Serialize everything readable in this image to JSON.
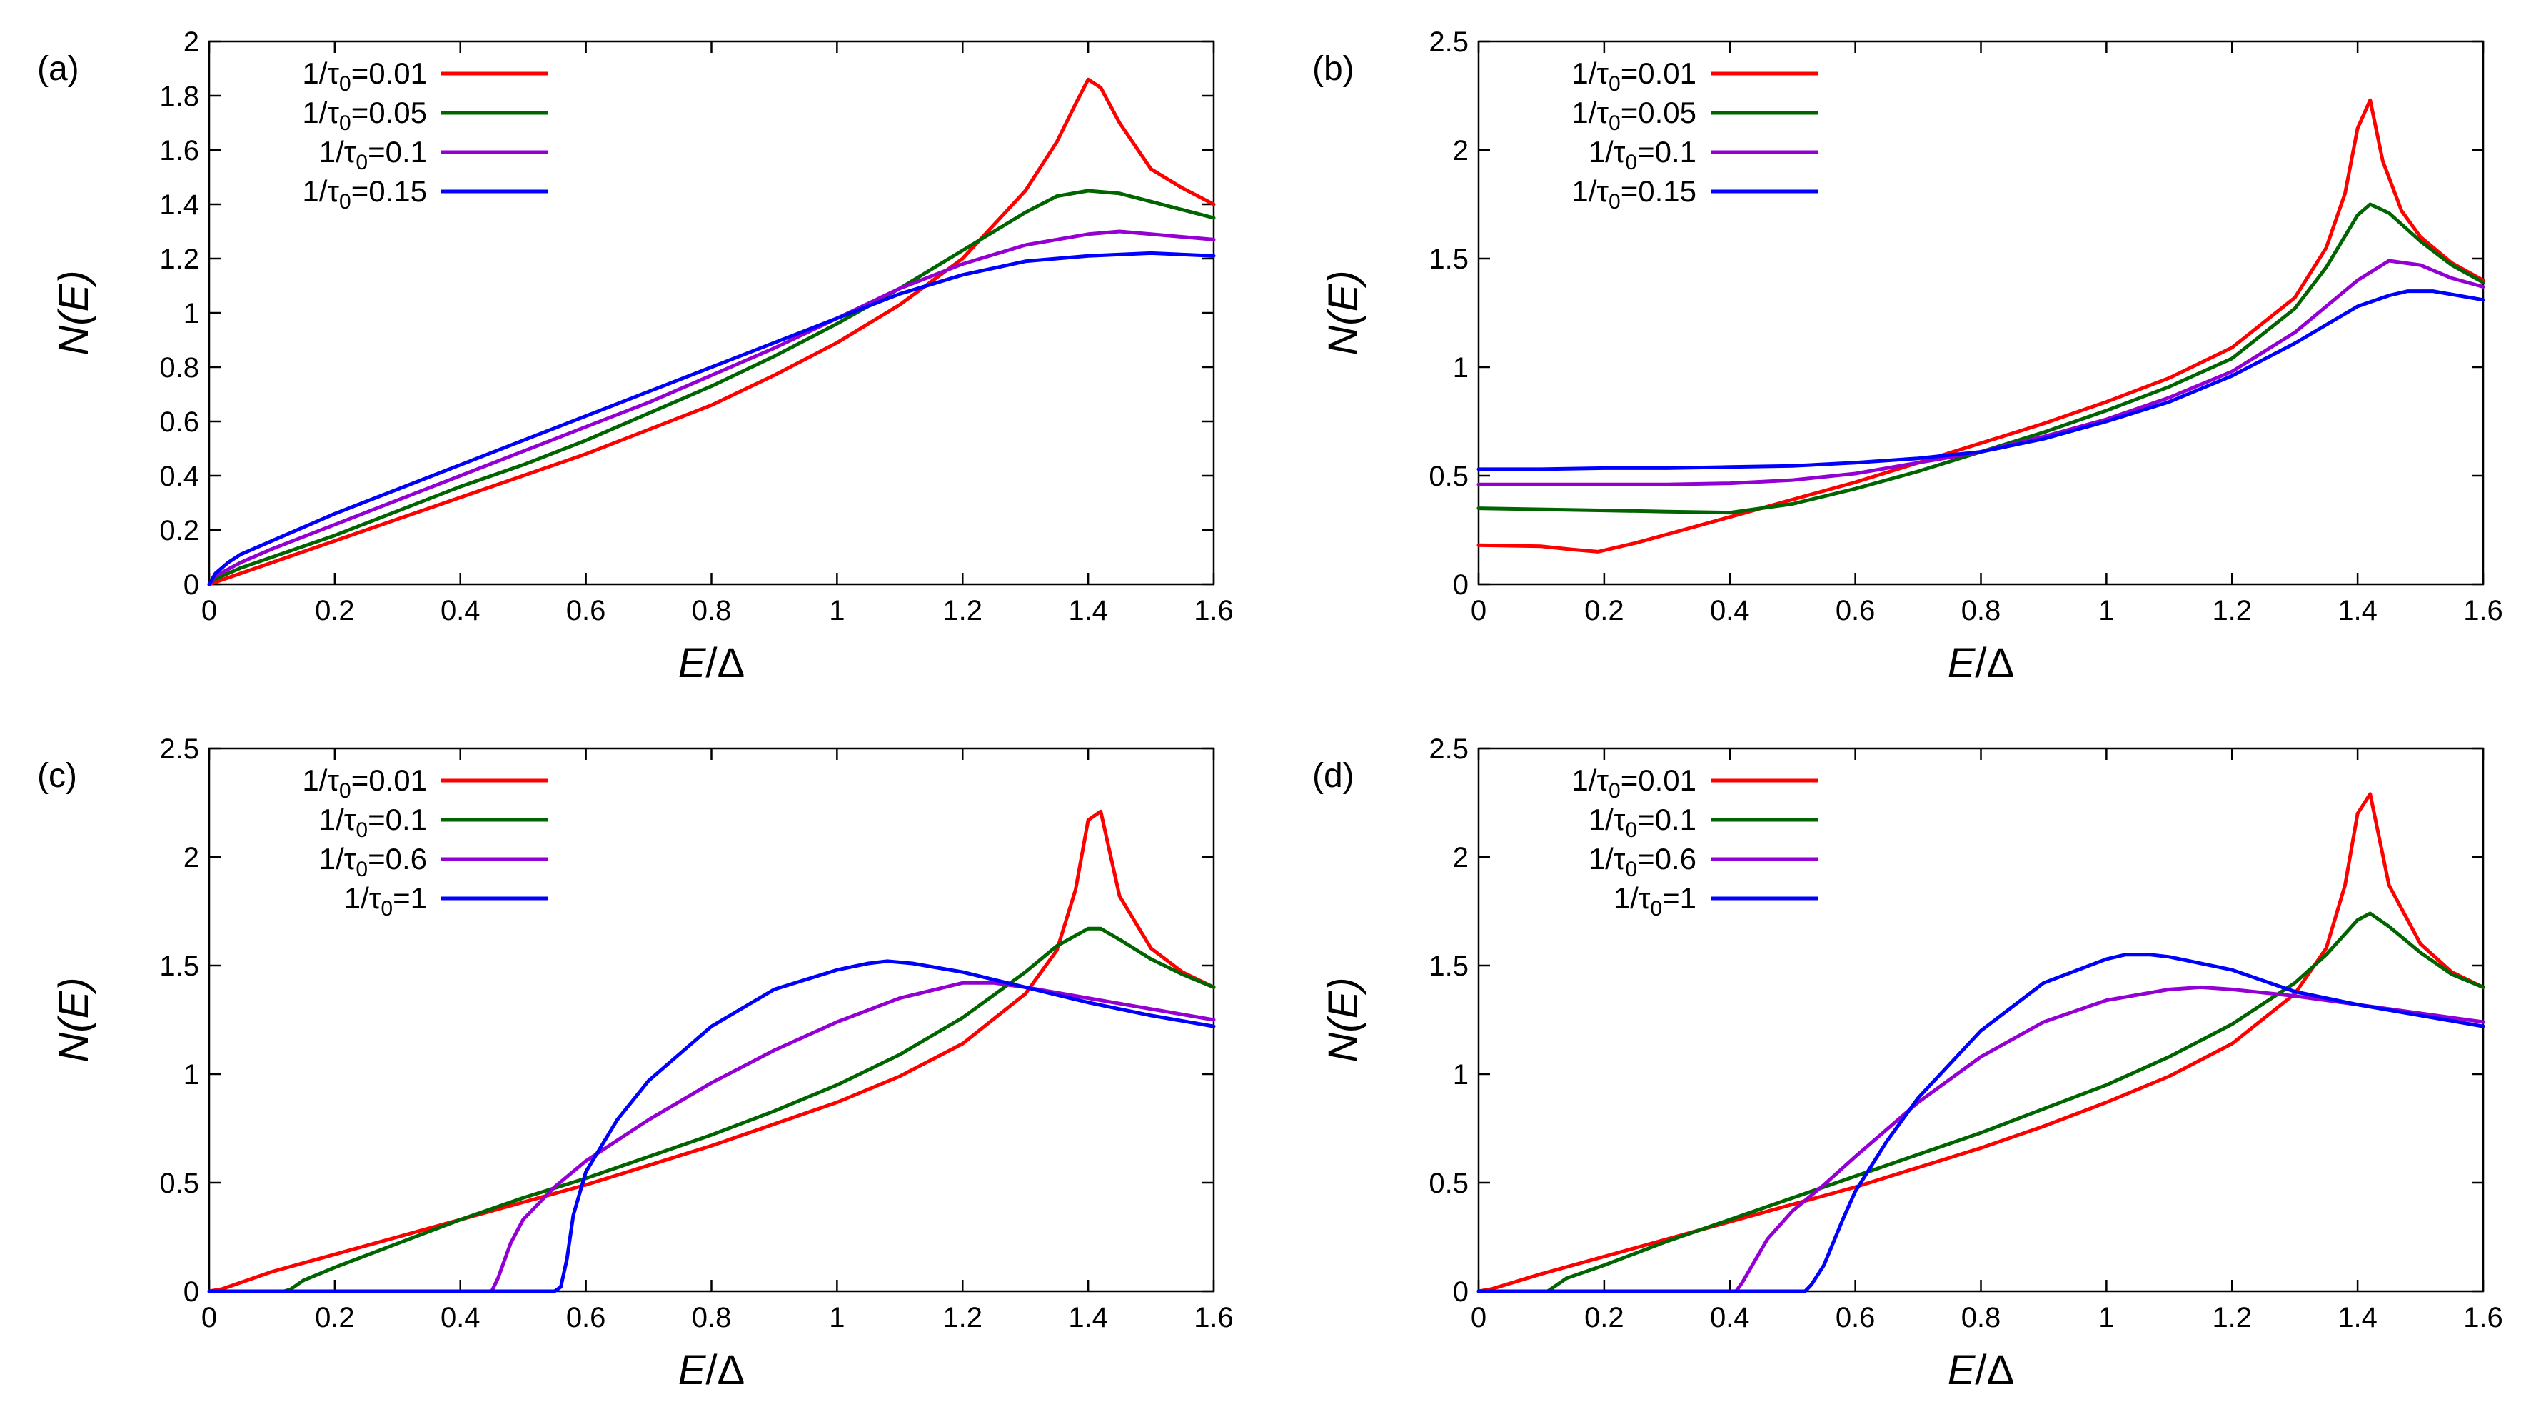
{
  "figure": {
    "xlabel_var": "E",
    "xlabel_rest": "/Δ",
    "ylabel": "N(E)",
    "colors": {
      "red": "#ff0000",
      "green": "#006400",
      "purple": "#9400d3",
      "blue": "#0000ff"
    }
  },
  "chart_data": [
    {
      "type": "line",
      "panel_label": "(a)",
      "xlim": [
        0,
        1.6
      ],
      "ylim": [
        0,
        2
      ],
      "xticks": [
        "0",
        "0.2",
        "0.4",
        "0.6",
        "0.8",
        "1",
        "1.2",
        "1.4",
        "1.6"
      ],
      "xtick_values": [
        0,
        0.2,
        0.4,
        0.6,
        0.8,
        1,
        1.2,
        1.4,
        1.6
      ],
      "yticks": [
        "0",
        "0.2",
        "0.4",
        "0.6",
        "0.8",
        "1",
        "1.2",
        "1.4",
        "1.6",
        "1.8",
        "2"
      ],
      "ytick_values": [
        0,
        0.2,
        0.4,
        0.6,
        0.8,
        1,
        1.2,
        1.4,
        1.6,
        1.8,
        2
      ],
      "xlabel": "E/Δ",
      "ylabel": "N(E)",
      "legend_position": "top-left",
      "series": [
        {
          "name": "1/τ0=0.01",
          "label_main": "1/τ",
          "label_sub": "0",
          "label_val": "=0.01",
          "color": "#ff0000",
          "x": [
            0,
            0.1,
            0.2,
            0.3,
            0.4,
            0.5,
            0.6,
            0.7,
            0.8,
            0.9,
            1.0,
            1.1,
            1.2,
            1.3,
            1.35,
            1.38,
            1.4,
            1.42,
            1.45,
            1.5,
            1.55,
            1.6
          ],
          "y": [
            0,
            0.08,
            0.16,
            0.24,
            0.32,
            0.4,
            0.48,
            0.57,
            0.66,
            0.77,
            0.89,
            1.03,
            1.2,
            1.45,
            1.63,
            1.77,
            1.86,
            1.83,
            1.7,
            1.53,
            1.46,
            1.4
          ]
        },
        {
          "name": "1/τ0=0.05",
          "label_main": "1/τ",
          "label_sub": "0",
          "label_val": "=0.05",
          "color": "#006400",
          "x": [
            0,
            0.01,
            0.05,
            0.1,
            0.2,
            0.3,
            0.4,
            0.5,
            0.6,
            0.7,
            0.8,
            0.9,
            1.0,
            1.1,
            1.2,
            1.3,
            1.35,
            1.4,
            1.45,
            1.5,
            1.55,
            1.6
          ],
          "y": [
            0,
            0.02,
            0.06,
            0.1,
            0.18,
            0.27,
            0.36,
            0.44,
            0.53,
            0.63,
            0.73,
            0.84,
            0.96,
            1.09,
            1.23,
            1.37,
            1.43,
            1.45,
            1.44,
            1.41,
            1.38,
            1.35
          ]
        },
        {
          "name": "1/τ0=0.1",
          "label_main": "1/τ",
          "label_sub": "0",
          "label_val": "=0.1",
          "color": "#9400d3",
          "x": [
            0,
            0.01,
            0.05,
            0.1,
            0.2,
            0.3,
            0.4,
            0.5,
            0.6,
            0.7,
            0.8,
            0.9,
            1.0,
            1.1,
            1.2,
            1.3,
            1.4,
            1.45,
            1.5,
            1.6
          ],
          "y": [
            0,
            0.03,
            0.08,
            0.13,
            0.22,
            0.31,
            0.4,
            0.49,
            0.58,
            0.67,
            0.77,
            0.87,
            0.98,
            1.09,
            1.18,
            1.25,
            1.29,
            1.3,
            1.29,
            1.27
          ]
        },
        {
          "name": "1/τ0=0.15",
          "label_main": "1/τ",
          "label_sub": "0",
          "label_val": "=0.15",
          "color": "#0000ff",
          "x": [
            0,
            0.01,
            0.03,
            0.05,
            0.1,
            0.2,
            0.3,
            0.4,
            0.5,
            0.6,
            0.7,
            0.8,
            0.9,
            1.0,
            1.1,
            1.2,
            1.3,
            1.4,
            1.5,
            1.6
          ],
          "y": [
            0,
            0.04,
            0.08,
            0.11,
            0.16,
            0.26,
            0.35,
            0.44,
            0.53,
            0.62,
            0.71,
            0.8,
            0.89,
            0.98,
            1.07,
            1.14,
            1.19,
            1.21,
            1.22,
            1.21
          ]
        }
      ]
    },
    {
      "type": "line",
      "panel_label": "(b)",
      "xlim": [
        0,
        1.6
      ],
      "ylim": [
        0,
        2.5
      ],
      "xticks": [
        "0",
        "0.2",
        "0.4",
        "0.6",
        "0.8",
        "1",
        "1.2",
        "1.4",
        "1.6"
      ],
      "xtick_values": [
        0,
        0.2,
        0.4,
        0.6,
        0.8,
        1,
        1.2,
        1.4,
        1.6
      ],
      "yticks": [
        "0",
        "0.5",
        "1",
        "1.5",
        "2",
        "2.5"
      ],
      "ytick_values": [
        0,
        0.5,
        1,
        1.5,
        2,
        2.5
      ],
      "xlabel": "E/Δ",
      "ylabel": "N(E)",
      "legend_position": "top-left",
      "series": [
        {
          "name": "1/τ0=0.01",
          "label_main": "1/τ",
          "label_sub": "0",
          "label_val": "=0.01",
          "color": "#ff0000",
          "x": [
            0,
            0.1,
            0.15,
            0.19,
            0.25,
            0.3,
            0.4,
            0.5,
            0.6,
            0.7,
            0.8,
            0.9,
            1.0,
            1.1,
            1.2,
            1.3,
            1.35,
            1.38,
            1.4,
            1.42,
            1.44,
            1.47,
            1.5,
            1.55,
            1.6
          ],
          "y": [
            0.18,
            0.175,
            0.16,
            0.15,
            0.19,
            0.23,
            0.31,
            0.39,
            0.47,
            0.56,
            0.65,
            0.74,
            0.84,
            0.95,
            1.09,
            1.32,
            1.55,
            1.8,
            2.1,
            2.23,
            1.95,
            1.72,
            1.6,
            1.48,
            1.4
          ]
        },
        {
          "name": "1/τ0=0.05",
          "label_main": "1/τ",
          "label_sub": "0",
          "label_val": "=0.05",
          "color": "#006400",
          "x": [
            0,
            0.1,
            0.2,
            0.3,
            0.4,
            0.5,
            0.6,
            0.7,
            0.8,
            0.9,
            1.0,
            1.1,
            1.2,
            1.3,
            1.35,
            1.4,
            1.42,
            1.45,
            1.5,
            1.55,
            1.6
          ],
          "y": [
            0.35,
            0.345,
            0.34,
            0.335,
            0.33,
            0.37,
            0.44,
            0.52,
            0.61,
            0.7,
            0.8,
            0.91,
            1.04,
            1.27,
            1.46,
            1.7,
            1.75,
            1.71,
            1.58,
            1.47,
            1.39
          ]
        },
        {
          "name": "1/τ0=0.1",
          "label_main": "1/τ",
          "label_sub": "0",
          "label_val": "=0.1",
          "color": "#9400d3",
          "x": [
            0,
            0.1,
            0.2,
            0.3,
            0.4,
            0.5,
            0.6,
            0.7,
            0.8,
            0.9,
            1.0,
            1.1,
            1.2,
            1.3,
            1.4,
            1.45,
            1.5,
            1.55,
            1.6
          ],
          "y": [
            0.46,
            0.46,
            0.46,
            0.46,
            0.465,
            0.48,
            0.51,
            0.56,
            0.61,
            0.68,
            0.76,
            0.86,
            0.98,
            1.16,
            1.4,
            1.49,
            1.47,
            1.41,
            1.37
          ]
        },
        {
          "name": "1/τ0=0.15",
          "label_main": "1/τ",
          "label_sub": "0",
          "label_val": "=0.15",
          "color": "#0000ff",
          "x": [
            0,
            0.1,
            0.2,
            0.3,
            0.4,
            0.5,
            0.6,
            0.7,
            0.8,
            0.9,
            1.0,
            1.1,
            1.2,
            1.3,
            1.4,
            1.45,
            1.48,
            1.52,
            1.56,
            1.6
          ],
          "y": [
            0.53,
            0.53,
            0.535,
            0.535,
            0.54,
            0.545,
            0.56,
            0.58,
            0.61,
            0.67,
            0.75,
            0.84,
            0.96,
            1.11,
            1.28,
            1.33,
            1.35,
            1.35,
            1.33,
            1.31
          ]
        }
      ]
    },
    {
      "type": "line",
      "panel_label": "(c)",
      "xlim": [
        0,
        1.6
      ],
      "ylim": [
        0,
        2.5
      ],
      "xticks": [
        "0",
        "0.2",
        "0.4",
        "0.6",
        "0.8",
        "1",
        "1.2",
        "1.4",
        "1.6"
      ],
      "xtick_values": [
        0,
        0.2,
        0.4,
        0.6,
        0.8,
        1,
        1.2,
        1.4,
        1.6
      ],
      "yticks": [
        "0",
        "0.5",
        "1",
        "1.5",
        "2",
        "2.5"
      ],
      "ytick_values": [
        0,
        0.5,
        1,
        1.5,
        2,
        2.5
      ],
      "xlabel": "E/Δ",
      "ylabel": "N(E)",
      "legend_position": "top-left",
      "series": [
        {
          "name": "1/τ0=0.01",
          "label_main": "1/τ",
          "label_sub": "0",
          "label_val": "=0.01",
          "color": "#ff0000",
          "x": [
            0,
            0.02,
            0.1,
            0.2,
            0.3,
            0.4,
            0.5,
            0.6,
            0.7,
            0.8,
            0.9,
            1.0,
            1.1,
            1.2,
            1.3,
            1.35,
            1.38,
            1.4,
            1.42,
            1.45,
            1.5,
            1.55,
            1.6
          ],
          "y": [
            0,
            0.01,
            0.09,
            0.17,
            0.25,
            0.33,
            0.41,
            0.49,
            0.58,
            0.67,
            0.77,
            0.87,
            0.99,
            1.14,
            1.37,
            1.57,
            1.85,
            2.17,
            2.21,
            1.82,
            1.58,
            1.47,
            1.4
          ]
        },
        {
          "name": "1/τ0=0.1",
          "label_main": "1/τ",
          "label_sub": "0",
          "label_val": "=0.1",
          "color": "#006400",
          "x": [
            0,
            0.12,
            0.13,
            0.15,
            0.2,
            0.3,
            0.4,
            0.5,
            0.6,
            0.7,
            0.8,
            0.9,
            1.0,
            1.1,
            1.2,
            1.3,
            1.35,
            1.4,
            1.42,
            1.45,
            1.5,
            1.55,
            1.6
          ],
          "y": [
            0,
            0,
            0.01,
            0.05,
            0.11,
            0.22,
            0.33,
            0.43,
            0.52,
            0.62,
            0.72,
            0.83,
            0.95,
            1.09,
            1.26,
            1.47,
            1.59,
            1.67,
            1.67,
            1.62,
            1.53,
            1.46,
            1.4
          ]
        },
        {
          "name": "1/τ0=0.6",
          "label_main": "1/τ",
          "label_sub": "0",
          "label_val": "=0.6",
          "color": "#9400d3",
          "x": [
            0,
            0.45,
            0.46,
            0.48,
            0.5,
            0.55,
            0.6,
            0.7,
            0.8,
            0.9,
            1.0,
            1.1,
            1.2,
            1.25,
            1.3,
            1.4,
            1.5,
            1.6
          ],
          "y": [
            0,
            0,
            0.06,
            0.22,
            0.33,
            0.48,
            0.6,
            0.79,
            0.96,
            1.11,
            1.24,
            1.35,
            1.42,
            1.42,
            1.4,
            1.35,
            1.3,
            1.25
          ]
        },
        {
          "name": "1/τ0=1",
          "label_main": "1/τ",
          "label_sub": "0",
          "label_val": "=1",
          "color": "#0000ff",
          "x": [
            0,
            0.55,
            0.56,
            0.57,
            0.58,
            0.6,
            0.65,
            0.7,
            0.8,
            0.9,
            1.0,
            1.05,
            1.08,
            1.12,
            1.2,
            1.3,
            1.4,
            1.5,
            1.6
          ],
          "y": [
            0,
            0,
            0.02,
            0.15,
            0.35,
            0.55,
            0.79,
            0.97,
            1.22,
            1.39,
            1.48,
            1.51,
            1.52,
            1.51,
            1.47,
            1.4,
            1.33,
            1.27,
            1.22
          ]
        }
      ]
    },
    {
      "type": "line",
      "panel_label": "(d)",
      "xlim": [
        0,
        1.6
      ],
      "ylim": [
        0,
        2.5
      ],
      "xticks": [
        "0",
        "0.2",
        "0.4",
        "0.6",
        "0.8",
        "1",
        "1.2",
        "1.4",
        "1.6"
      ],
      "xtick_values": [
        0,
        0.2,
        0.4,
        0.6,
        0.8,
        1,
        1.2,
        1.4,
        1.6
      ],
      "yticks": [
        "0",
        "0.5",
        "1",
        "1.5",
        "2",
        "2.5"
      ],
      "ytick_values": [
        0,
        0.5,
        1,
        1.5,
        2,
        2.5
      ],
      "xlabel": "E/Δ",
      "ylabel": "N(E)",
      "legend_position": "top-left",
      "series": [
        {
          "name": "1/τ0=0.01",
          "label_main": "1/τ",
          "label_sub": "0",
          "label_val": "=0.01",
          "color": "#ff0000",
          "x": [
            0,
            0.02,
            0.1,
            0.2,
            0.3,
            0.4,
            0.5,
            0.6,
            0.7,
            0.8,
            0.9,
            1.0,
            1.1,
            1.2,
            1.3,
            1.35,
            1.38,
            1.4,
            1.42,
            1.45,
            1.5,
            1.55,
            1.6
          ],
          "y": [
            0,
            0.01,
            0.08,
            0.16,
            0.24,
            0.32,
            0.4,
            0.48,
            0.57,
            0.66,
            0.76,
            0.87,
            0.99,
            1.14,
            1.37,
            1.58,
            1.87,
            2.2,
            2.29,
            1.87,
            1.6,
            1.47,
            1.4
          ]
        },
        {
          "name": "1/τ0=0.1",
          "label_main": "1/τ",
          "label_sub": "0",
          "label_val": "=0.1",
          "color": "#006400",
          "x": [
            0,
            0.11,
            0.12,
            0.14,
            0.2,
            0.3,
            0.4,
            0.5,
            0.6,
            0.7,
            0.8,
            0.9,
            1.0,
            1.1,
            1.2,
            1.3,
            1.35,
            1.4,
            1.42,
            1.45,
            1.5,
            1.55,
            1.6
          ],
          "y": [
            0,
            0,
            0.02,
            0.06,
            0.12,
            0.23,
            0.33,
            0.43,
            0.53,
            0.63,
            0.73,
            0.84,
            0.95,
            1.08,
            1.23,
            1.42,
            1.55,
            1.71,
            1.74,
            1.68,
            1.56,
            1.46,
            1.4
          ]
        },
        {
          "name": "1/τ0=0.6",
          "label_main": "1/τ",
          "label_sub": "0",
          "label_val": "=0.6",
          "color": "#9400d3",
          "x": [
            0,
            0.41,
            0.42,
            0.44,
            0.46,
            0.5,
            0.55,
            0.6,
            0.7,
            0.8,
            0.9,
            1.0,
            1.1,
            1.15,
            1.2,
            1.3,
            1.4,
            1.5,
            1.6
          ],
          "y": [
            0,
            0,
            0.04,
            0.14,
            0.24,
            0.37,
            0.49,
            0.62,
            0.87,
            1.08,
            1.24,
            1.34,
            1.39,
            1.4,
            1.39,
            1.36,
            1.32,
            1.28,
            1.24
          ]
        },
        {
          "name": "1/τ0=1",
          "label_main": "1/τ",
          "label_sub": "0",
          "label_val": "=1",
          "color": "#0000ff",
          "x": [
            0,
            0.52,
            0.53,
            0.55,
            0.58,
            0.6,
            0.65,
            0.7,
            0.8,
            0.9,
            1.0,
            1.03,
            1.07,
            1.1,
            1.2,
            1.3,
            1.4,
            1.5,
            1.6
          ],
          "y": [
            0,
            0,
            0.03,
            0.12,
            0.33,
            0.46,
            0.69,
            0.89,
            1.2,
            1.42,
            1.53,
            1.55,
            1.55,
            1.54,
            1.48,
            1.38,
            1.32,
            1.27,
            1.22
          ]
        }
      ]
    }
  ]
}
